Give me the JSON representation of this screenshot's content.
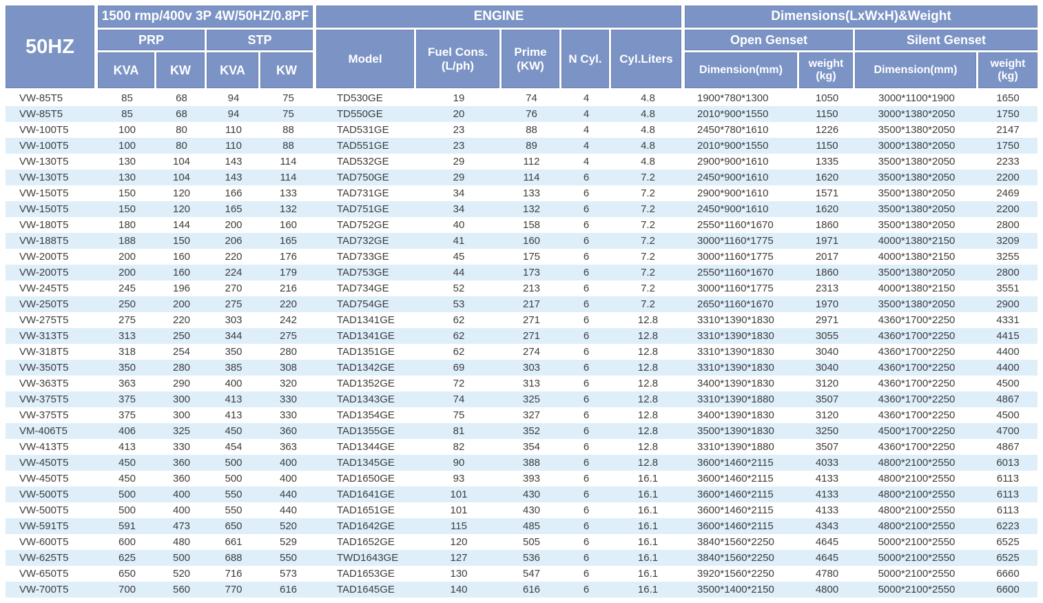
{
  "table": {
    "freq_label": "50HZ",
    "rating_header": "1500 rmp/400v 3P 4W/50HZ/0.8PF",
    "engine_header": "ENGINE",
    "dimensions_header": "Dimensions(LxWxH)&Weight",
    "prp_label": "PRP",
    "stp_label": "STP",
    "kva_label": "KVA",
    "kw_label": "KW",
    "model_label": "Model",
    "fuel_label_1": "Fuel Cons.",
    "fuel_label_2": "(L/ph)",
    "prime_label_1": "Prime",
    "prime_label_2": "(KW)",
    "ncyl_label": "N Cyl.",
    "cylliters_label": "Cyl.Liters",
    "open_genset_label": "Open Genset",
    "silent_genset_label": "Silent Genset",
    "dimension_label": "Dimension(mm)",
    "weight_label_1": "weight",
    "weight_label_2": "(kg)",
    "colors": {
      "header_bg": "#7b93c5",
      "stripe_bg": "#deeffa",
      "text": "#3c3c3c"
    },
    "columns": [
      "genset-model",
      "prp-kva",
      "prp-kw",
      "stp-kva",
      "stp-kw",
      "engine-model",
      "fuel-cons",
      "prime-kw",
      "n-cyl",
      "cyl-liters",
      "open-dimension",
      "open-weight",
      "silent-dimension",
      "silent-weight"
    ],
    "rows": [
      [
        "VW-85T5",
        "85",
        "68",
        "94",
        "75",
        "TD530GE",
        "19",
        "74",
        "4",
        "4.8",
        "1900*780*1300",
        "1050",
        "3000*1100*1900",
        "1650"
      ],
      [
        "VW-85T5",
        "85",
        "68",
        "94",
        "75",
        "TD550GE",
        "20",
        "76",
        "4",
        "4.8",
        "2010*900*1550",
        "1150",
        "3000*1380*2050",
        "1750"
      ],
      [
        "VW-100T5",
        "100",
        "80",
        "110",
        "88",
        "TAD531GE",
        "23",
        "88",
        "4",
        "4.8",
        "2450*780*1610",
        "1226",
        "3500*1380*2050",
        "2147"
      ],
      [
        "VW-100T5",
        "100",
        "80",
        "110",
        "88",
        "TAD551GE",
        "23",
        "89",
        "4",
        "4.8",
        "2010*900*1550",
        "1150",
        "3000*1380*2050",
        "1750"
      ],
      [
        "VW-130T5",
        "130",
        "104",
        "143",
        "114",
        "TAD532GE",
        "29",
        "112",
        "4",
        "4.8",
        "2900*900*1610",
        "1335",
        "3500*1380*2050",
        "2233"
      ],
      [
        "VW-130T5",
        "130",
        "104",
        "143",
        "114",
        "TAD750GE",
        "29",
        "114",
        "6",
        "7.2",
        "2450*900*1610",
        "1620",
        "3500*1380*2050",
        "2200"
      ],
      [
        "VW-150T5",
        "150",
        "120",
        "166",
        "133",
        "TAD731GE",
        "34",
        "133",
        "6",
        "7.2",
        "2900*900*1610",
        "1571",
        "3500*1380*2050",
        "2469"
      ],
      [
        "VW-150T5",
        "150",
        "120",
        "165",
        "132",
        "TAD751GE",
        "34",
        "132",
        "6",
        "7.2",
        "2450*900*1610",
        "1620",
        "3500*1380*2050",
        "2200"
      ],
      [
        "VW-180T5",
        "180",
        "144",
        "200",
        "160",
        "TAD752GE",
        "40",
        "158",
        "6",
        "7.2",
        "2550*1160*1670",
        "1860",
        "3500*1380*2050",
        "2800"
      ],
      [
        "VW-188T5",
        "188",
        "150",
        "206",
        "165",
        "TAD732GE",
        "41",
        "160",
        "6",
        "7.2",
        "3000*1160*1775",
        "1971",
        "4000*1380*2150",
        "3209"
      ],
      [
        "VW-200T5",
        "200",
        "160",
        "220",
        "176",
        "TAD733GE",
        "45",
        "175",
        "6",
        "7.2",
        "3000*1160*1775",
        "2017",
        "4000*1380*2150",
        "3255"
      ],
      [
        "VW-200T5",
        "200",
        "160",
        "224",
        "179",
        "TAD753GE",
        "44",
        "173",
        "6",
        "7.2",
        "2550*1160*1670",
        "1860",
        "3500*1380*2050",
        "2800"
      ],
      [
        "VW-245T5",
        "245",
        "196",
        "270",
        "216",
        "TAD734GE",
        "52",
        "213",
        "6",
        "7.2",
        "3000*1160*1775",
        "2313",
        "4000*1380*2150",
        "3551"
      ],
      [
        "VW-250T5",
        "250",
        "200",
        "275",
        "220",
        "TAD754GE",
        "53",
        "217",
        "6",
        "7.2",
        "2650*1160*1670",
        "1970",
        "3500*1380*2050",
        "2900"
      ],
      [
        "VW-275T5",
        "275",
        "220",
        "303",
        "242",
        "TAD1341GE",
        "62",
        "271",
        "6",
        "12.8",
        "3310*1390*1830",
        "2971",
        "4360*1700*2250",
        "4331"
      ],
      [
        "VW-313T5",
        "313",
        "250",
        "344",
        "275",
        "TAD1341GE",
        "62",
        "271",
        "6",
        "12.8",
        "3310*1390*1830",
        "3055",
        "4360*1700*2250",
        "4415"
      ],
      [
        "VW-318T5",
        "318",
        "254",
        "350",
        "280",
        "TAD1351GE",
        "62",
        "274",
        "6",
        "12.8",
        "3310*1390*1830",
        "3040",
        "4360*1700*2250",
        "4400"
      ],
      [
        "VW-350T5",
        "350",
        "280",
        "385",
        "308",
        "TAD1342GE",
        "69",
        "303",
        "6",
        "12.8",
        "3310*1390*1830",
        "3040",
        "4360*1700*2250",
        "4400"
      ],
      [
        "VW-363T5",
        "363",
        "290",
        "400",
        "320",
        "TAD1352GE",
        "72",
        "313",
        "6",
        "12.8",
        "3400*1390*1830",
        "3120",
        "4360*1700*2250",
        "4500"
      ],
      [
        "VW-375T5",
        "375",
        "300",
        "413",
        "330",
        "TAD1343GE",
        "74",
        "325",
        "6",
        "12.8",
        "3310*1390*1880",
        "3507",
        "4360*1700*2250",
        "4867"
      ],
      [
        "VW-375T5",
        "375",
        "300",
        "413",
        "330",
        "TAD1354GE",
        "75",
        "327",
        "6",
        "12.8",
        "3400*1390*1830",
        "3120",
        "4360*1700*2250",
        "4500"
      ],
      [
        "VM-406T5",
        "406",
        "325",
        "450",
        "360",
        "TAD1355GE",
        "81",
        "352",
        "6",
        "12.8",
        "3500*1390*1830",
        "3250",
        "4500*1700*2250",
        "4700"
      ],
      [
        "VW-413T5",
        "413",
        "330",
        "454",
        "363",
        "TAD1344GE",
        "82",
        "354",
        "6",
        "12.8",
        "3310*1390*1880",
        "3507",
        "4360*1700*2250",
        "4867"
      ],
      [
        "VW-450T5",
        "450",
        "360",
        "500",
        "400",
        "TAD1345GE",
        "90",
        "388",
        "6",
        "12.8",
        "3600*1460*2115",
        "4033",
        "4800*2100*2550",
        "6013"
      ],
      [
        "VW-450T5",
        "450",
        "360",
        "500",
        "400",
        "TAD1650GE",
        "93",
        "393",
        "6",
        "16.1",
        "3600*1460*2115",
        "4133",
        "4800*2100*2550",
        "6113"
      ],
      [
        "VW-500T5",
        "500",
        "400",
        "550",
        "440",
        "TAD1641GE",
        "101",
        "430",
        "6",
        "16.1",
        "3600*1460*2115",
        "4133",
        "4800*2100*2550",
        "6113"
      ],
      [
        "VW-500T5",
        "500",
        "400",
        "550",
        "440",
        "TAD1651GE",
        "101",
        "430",
        "6",
        "16.1",
        "3600*1460*2115",
        "4133",
        "4800*2100*2550",
        "6113"
      ],
      [
        "VW-591T5",
        "591",
        "473",
        "650",
        "520",
        "TAD1642GE",
        "115",
        "485",
        "6",
        "16.1",
        "3600*1460*2115",
        "4343",
        "4800*2100*2550",
        "6223"
      ],
      [
        "VW-600T5",
        "600",
        "480",
        "661",
        "529",
        "TAD1652GE",
        "120",
        "505",
        "6",
        "16.1",
        "3840*1560*2250",
        "4645",
        "5000*2100*2550",
        "6525"
      ],
      [
        "VW-625T5",
        "625",
        "500",
        "688",
        "550",
        "TWD1643GE",
        "127",
        "536",
        "6",
        "16.1",
        "3840*1560*2250",
        "4645",
        "5000*2100*2550",
        "6525"
      ],
      [
        "VW-650T5",
        "650",
        "520",
        "716",
        "573",
        "TAD1653GE",
        "130",
        "547",
        "6",
        "16.1",
        "3920*1560*2250",
        "4780",
        "5000*2100*2550",
        "6660"
      ],
      [
        "VW-700T5",
        "700",
        "560",
        "770",
        "616",
        "TAD1645GE",
        "140",
        "616",
        "6",
        "16.1",
        "3500*1400*2150",
        "4800",
        "5000*2100*2550",
        "6600"
      ]
    ]
  }
}
